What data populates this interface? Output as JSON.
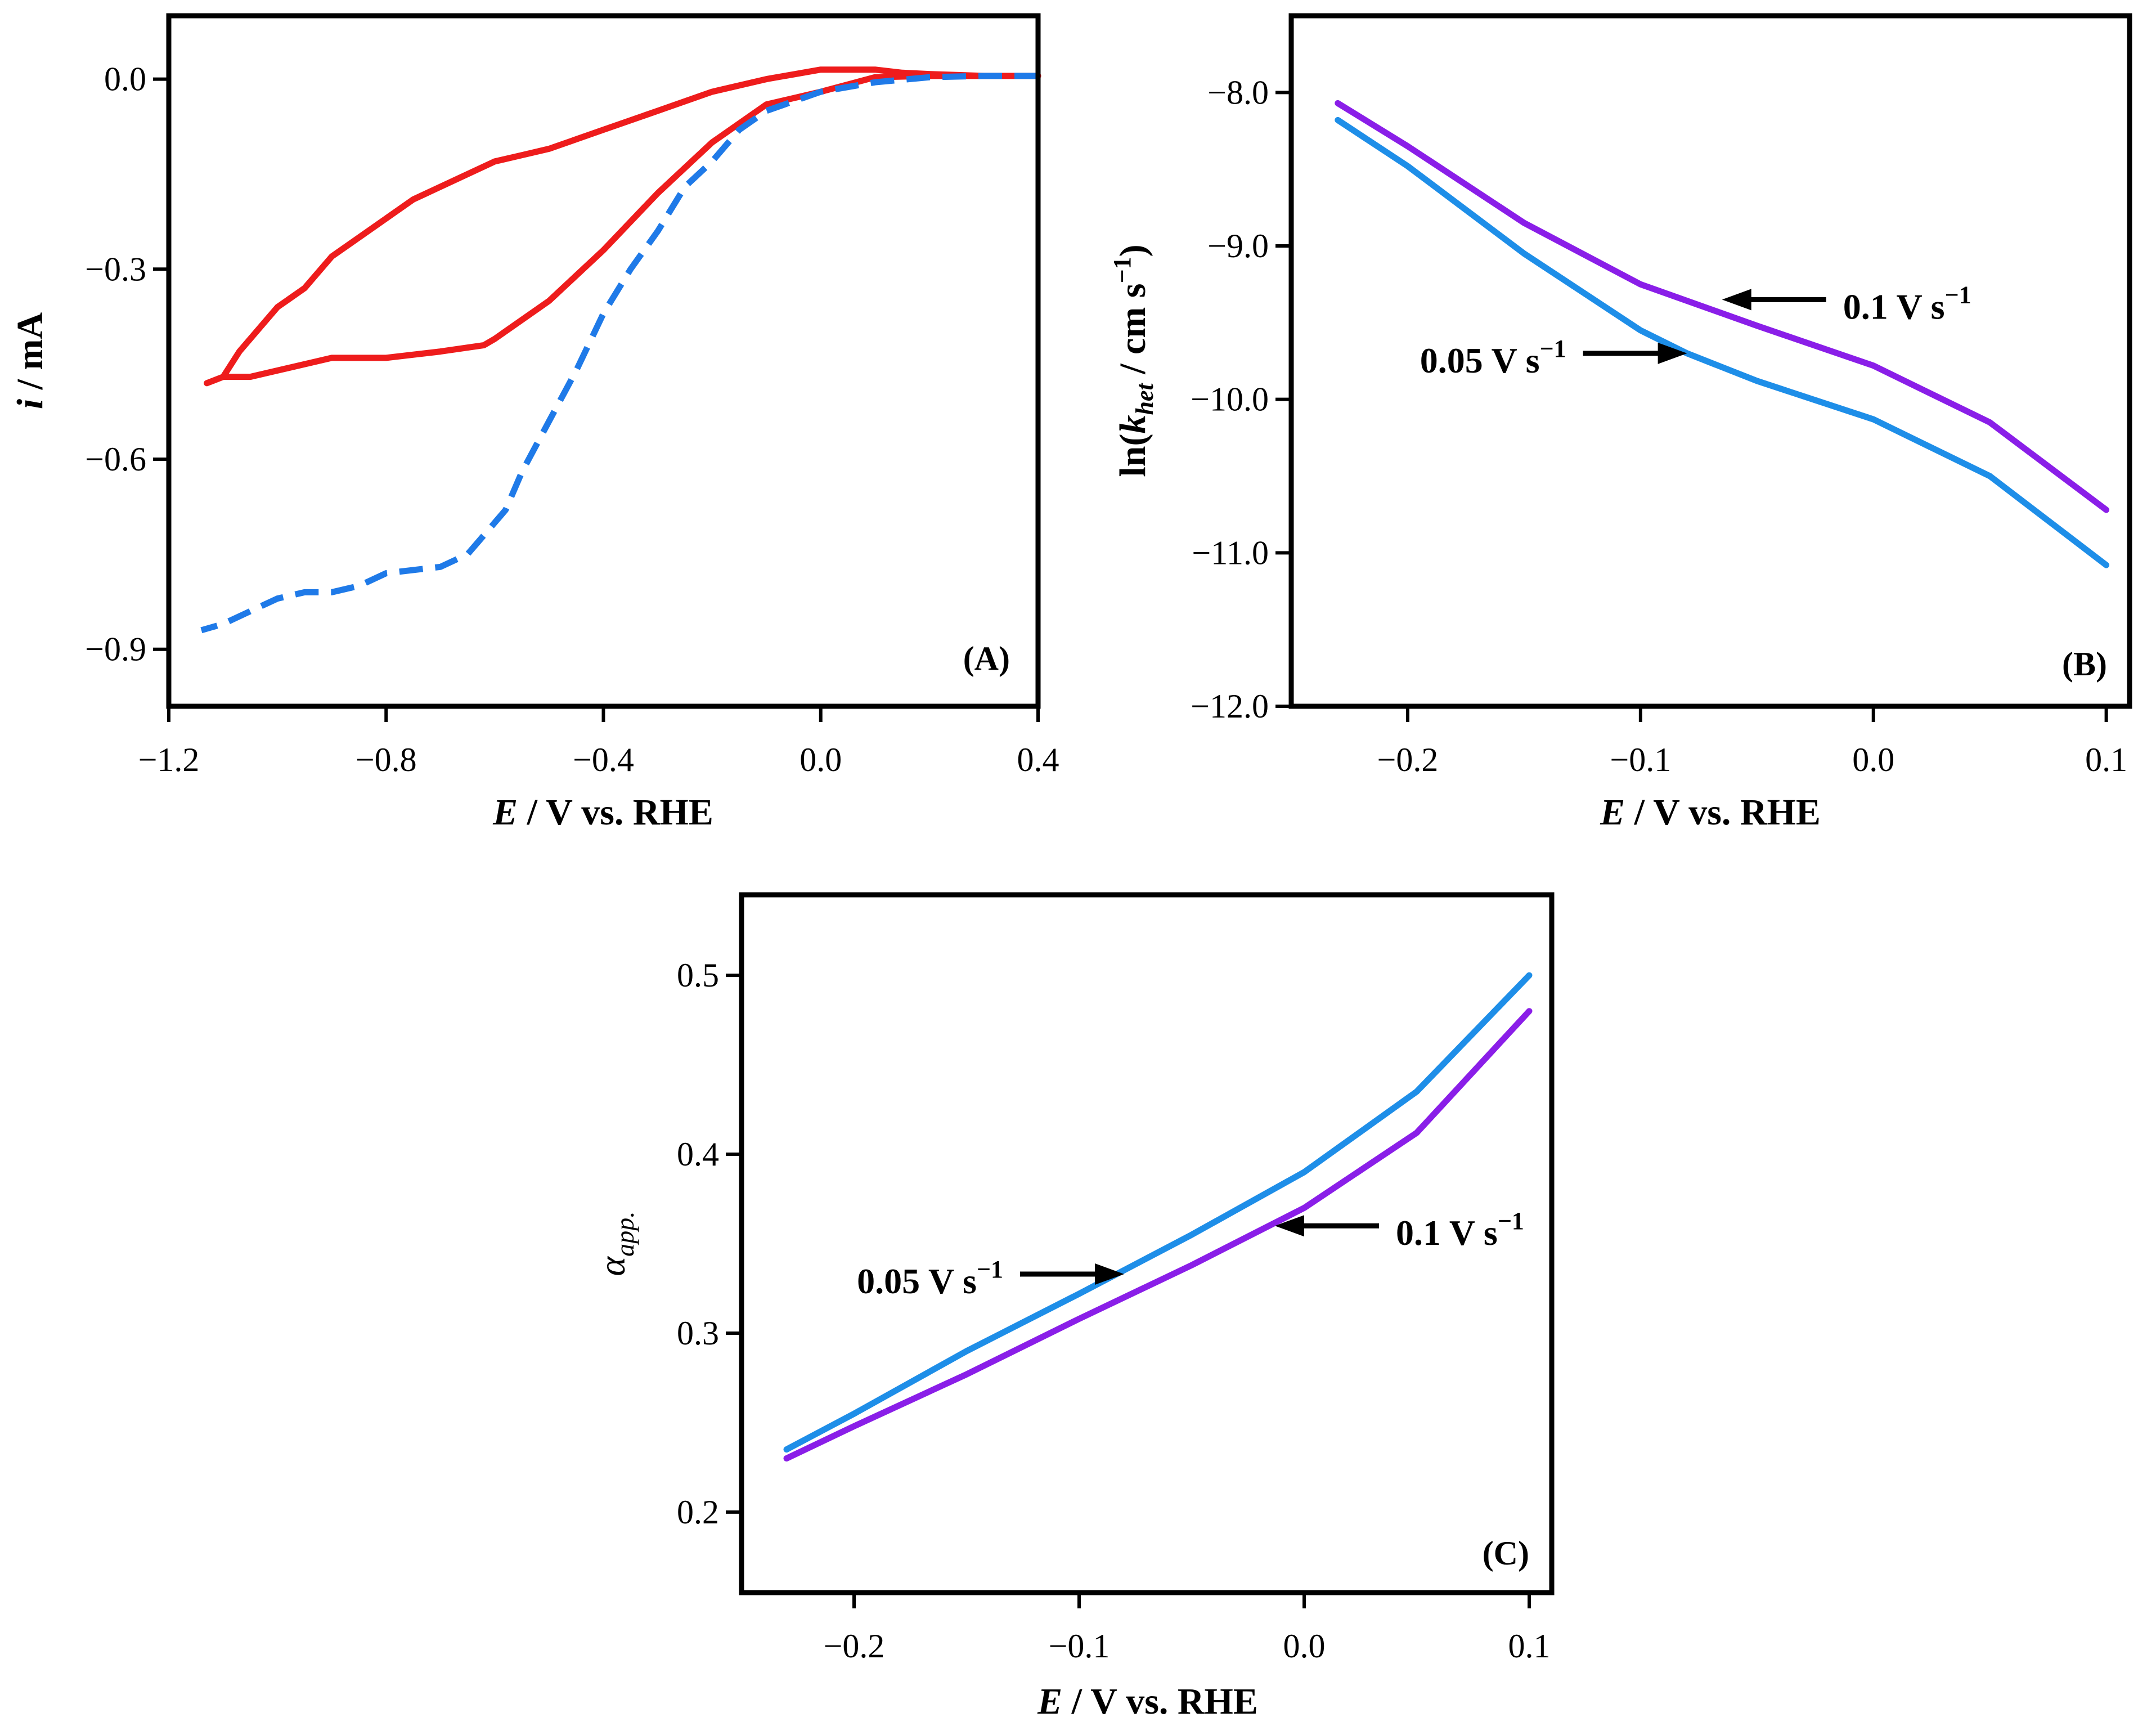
{
  "chart_data": [
    {
      "panel": "A",
      "type": "line",
      "panel_label": "(A)",
      "xlabel": "E / V vs. RHE",
      "xlabel_italic_part": "E",
      "xlabel_rest": " / V vs. RHE",
      "ylabel": "i / mA",
      "ylabel_italic_part": "i",
      "ylabel_rest": " / mA",
      "xlim": [
        -1.2,
        0.4
      ],
      "ylim": [
        -0.99,
        0.1
      ],
      "xticks": [
        -1.2,
        -0.8,
        -0.4,
        0.0,
        0.4
      ],
      "xtick_labels": [
        "−1.2",
        "−0.8",
        "−0.4",
        "0.0",
        "0.4"
      ],
      "yticks": [
        0.0,
        -0.3,
        -0.6,
        -0.9
      ],
      "ytick_labels": [
        "0.0",
        "−0.3",
        "−0.6",
        "−0.9"
      ],
      "series": [
        {
          "name": "red solid CV",
          "color": "#ee1c1c",
          "style": "solid",
          "x": [
            0.4,
            0.3,
            0.2,
            0.1,
            0.0,
            -0.1,
            -0.2,
            -0.3,
            -0.4,
            -0.5,
            -0.6,
            -0.62,
            -0.7,
            -0.8,
            -0.9,
            -1.0,
            -1.05,
            -1.1,
            -1.13,
            -1.1,
            -1.07,
            -1.0,
            -0.95,
            -0.9,
            -0.85,
            -0.8,
            -0.75,
            -0.7,
            -0.6,
            -0.55,
            -0.5,
            -0.4,
            -0.3,
            -0.2,
            -0.1,
            0.0,
            0.05,
            0.1,
            0.15,
            0.2,
            0.3,
            0.4
          ],
          "y": [
            0.005,
            0.005,
            0.005,
            0.003,
            -0.02,
            -0.04,
            -0.1,
            -0.18,
            -0.27,
            -0.35,
            -0.41,
            -0.42,
            -0.43,
            -0.44,
            -0.44,
            -0.46,
            -0.47,
            -0.47,
            -0.48,
            -0.47,
            -0.43,
            -0.36,
            -0.33,
            -0.28,
            -0.25,
            -0.22,
            -0.19,
            -0.17,
            -0.13,
            -0.12,
            -0.11,
            -0.08,
            -0.05,
            -0.02,
            0.0,
            0.015,
            0.015,
            0.015,
            0.01,
            0.008,
            0.005,
            0.005
          ]
        },
        {
          "name": "blue dashed CV",
          "color": "#1f7ae8",
          "style": "dashed",
          "x": [
            0.4,
            0.3,
            0.2,
            0.1,
            0.0,
            -0.1,
            -0.15,
            -0.2,
            -0.25,
            -0.3,
            -0.35,
            -0.4,
            -0.45,
            -0.5,
            -0.55,
            -0.58,
            -0.6,
            -0.65,
            -0.7,
            -0.8,
            -0.85,
            -0.9,
            -0.95,
            -1.0,
            -1.05,
            -1.1,
            -1.14
          ],
          "y": [
            0.005,
            0.005,
            0.003,
            -0.005,
            -0.02,
            -0.05,
            -0.08,
            -0.13,
            -0.17,
            -0.24,
            -0.3,
            -0.37,
            -0.46,
            -0.54,
            -0.62,
            -0.68,
            -0.7,
            -0.75,
            -0.77,
            -0.78,
            -0.8,
            -0.81,
            -0.81,
            -0.82,
            -0.84,
            -0.86,
            -0.87
          ]
        }
      ]
    },
    {
      "panel": "B",
      "type": "line",
      "panel_label": "(B)",
      "xlabel": "E / V vs. RHE",
      "xlabel_italic_part": "E",
      "xlabel_rest": " / V vs. RHE",
      "ylabel": "ln(k_het / cm s−1)",
      "ylabel_parts": [
        "ln(",
        "k",
        "het",
        " / cm s",
        "−1",
        ")"
      ],
      "xlim": [
        -0.25,
        0.11
      ],
      "ylim": [
        -12.0,
        -7.5
      ],
      "xticks": [
        -0.2,
        -0.1,
        0.0,
        0.1
      ],
      "xtick_labels": [
        "−0.2",
        "−0.1",
        "0.0",
        "0.1"
      ],
      "yticks": [
        -8.0,
        -9.0,
        -10.0,
        -11.0,
        -12.0
      ],
      "ytick_labels": [
        "−8.0",
        "−9.0",
        "−10.0",
        "−11.0",
        "−12.0"
      ],
      "series": [
        {
          "name": "0.1 V s−1",
          "color": "#8a1ee8",
          "x": [
            -0.23,
            -0.2,
            -0.15,
            -0.1,
            -0.05,
            0.0,
            0.05,
            0.1
          ],
          "y": [
            -8.07,
            -8.35,
            -8.85,
            -9.25,
            -9.52,
            -9.78,
            -10.15,
            -10.72
          ]
        },
        {
          "name": "0.05 V s−1",
          "color": "#1e8ee8",
          "x": [
            -0.23,
            -0.2,
            -0.15,
            -0.1,
            -0.08,
            -0.05,
            0.0,
            0.05,
            0.1
          ],
          "y": [
            -8.18,
            -8.48,
            -9.05,
            -9.55,
            -9.7,
            -9.88,
            -10.13,
            -10.5,
            -11.08
          ]
        }
      ],
      "annotations": [
        {
          "text_main": "0.1 V s",
          "text_sup": "−1",
          "x": -0.065,
          "y": -9.35,
          "side": "right"
        },
        {
          "text_main": "0.05 V s",
          "text_sup": "−1",
          "x": -0.08,
          "y": -9.7,
          "side": "left"
        }
      ]
    },
    {
      "panel": "C",
      "type": "line",
      "panel_label": "(C)",
      "xlabel": "E / V vs. RHE",
      "xlabel_italic_part": "E",
      "xlabel_rest": " / V vs. RHE",
      "ylabel": "α_app.",
      "ylabel_parts": [
        "α",
        "app."
      ],
      "xlim": [
        -0.25,
        0.11
      ],
      "ylim": [
        0.155,
        0.545
      ],
      "xticks": [
        -0.2,
        -0.1,
        0.0,
        0.1
      ],
      "xtick_labels": [
        "−0.2",
        "−0.1",
        "0.0",
        "0.1"
      ],
      "yticks": [
        0.2,
        0.3,
        0.4,
        0.5
      ],
      "ytick_labels": [
        "0.2",
        "0.3",
        "0.4",
        "0.5"
      ],
      "series": [
        {
          "name": "0.05 V s−1",
          "color": "#1e8ee8",
          "x": [
            -0.23,
            -0.2,
            -0.15,
            -0.1,
            -0.05,
            0.0,
            0.05,
            0.1
          ],
          "y": [
            0.235,
            0.255,
            0.29,
            0.322,
            0.355,
            0.39,
            0.435,
            0.5
          ]
        },
        {
          "name": "0.1 V s−1",
          "color": "#8a1ee8",
          "x": [
            -0.23,
            -0.2,
            -0.15,
            -0.1,
            -0.05,
            0.0,
            0.05,
            0.1
          ],
          "y": [
            0.23,
            0.248,
            0.277,
            0.308,
            0.338,
            0.37,
            0.412,
            0.48
          ]
        }
      ],
      "annotations": [
        {
          "text_main": "0.05 V s",
          "text_sup": "−1",
          "x": -0.08,
          "y": 0.333,
          "side": "left"
        },
        {
          "text_main": "0.1 V s",
          "text_sup": "−1",
          "x": -0.013,
          "y": 0.36,
          "side": "right"
        }
      ]
    }
  ]
}
